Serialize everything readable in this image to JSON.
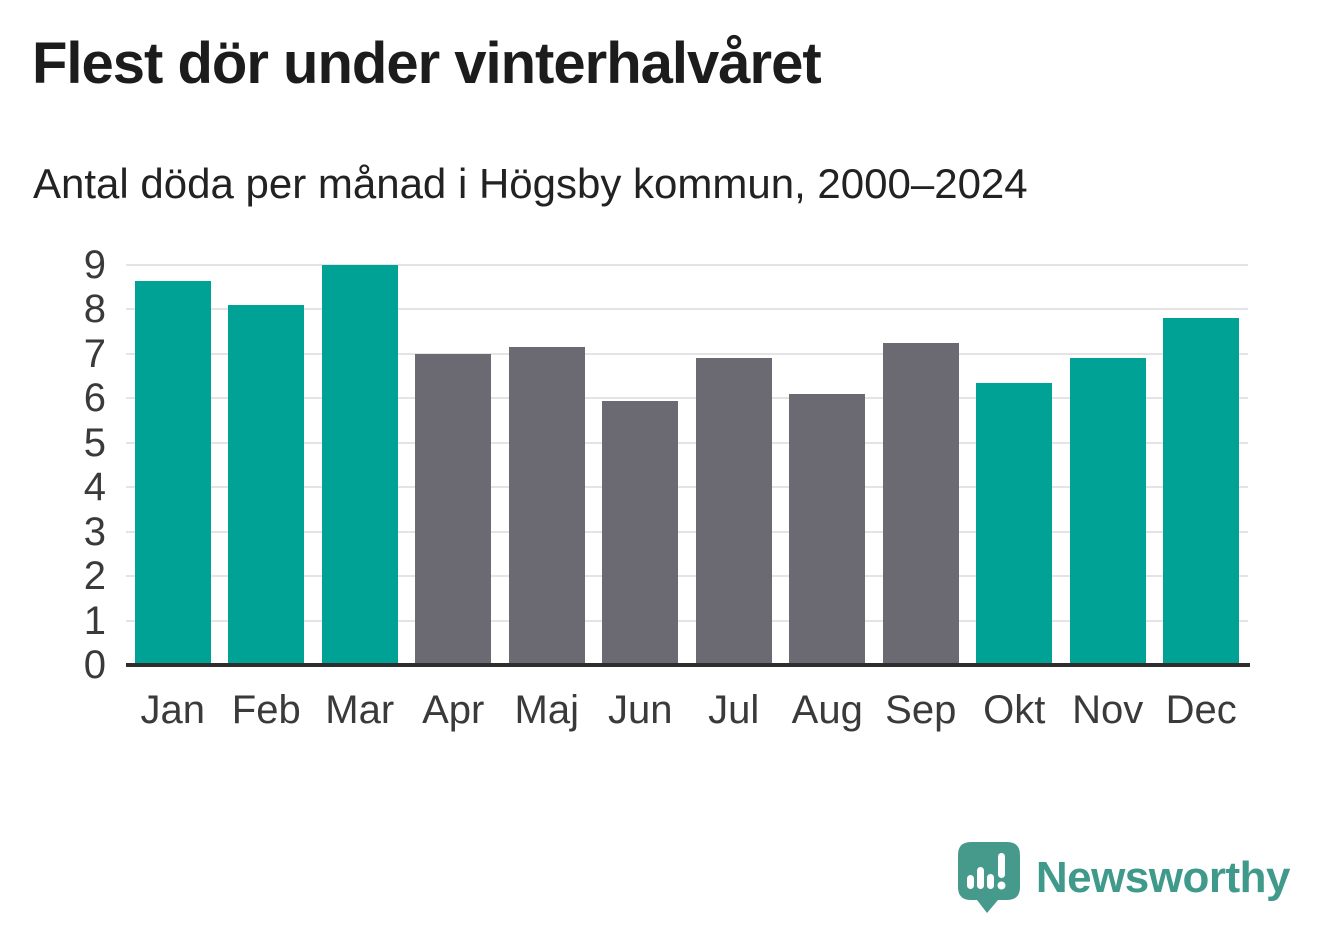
{
  "header": {
    "title": "Flest dör under vinterhalvåret",
    "subtitle": "Antal döda per månad i Högsby kommun, 2000–2024"
  },
  "chart_data": {
    "type": "bar",
    "title": "Flest dör under vinterhalvåret",
    "subtitle": "Antal döda per månad i Högsby kommun, 2000–2024",
    "categories": [
      "Jan",
      "Feb",
      "Mar",
      "Apr",
      "Maj",
      "Jun",
      "Jul",
      "Aug",
      "Sep",
      "Okt",
      "Nov",
      "Dec"
    ],
    "values": [
      8.65,
      8.1,
      9.0,
      7.0,
      7.15,
      5.95,
      6.9,
      6.1,
      7.25,
      6.35,
      6.9,
      7.8
    ],
    "bar_colors": [
      "#00a296",
      "#00a296",
      "#00a296",
      "#6b6a72",
      "#6b6a72",
      "#6b6a72",
      "#6b6a72",
      "#6b6a72",
      "#6b6a72",
      "#00a296",
      "#00a296",
      "#00a296"
    ],
    "highlighted_categories": [
      "Jan",
      "Feb",
      "Mar",
      "Okt",
      "Nov",
      "Dec"
    ],
    "xlabel": "",
    "ylabel": "",
    "ylim": [
      0,
      9
    ],
    "yticks": [
      0,
      1,
      2,
      3,
      4,
      5,
      6,
      7,
      8,
      9
    ],
    "grid": "horizontal-light",
    "legend": "none"
  },
  "colors": {
    "highlight_teal": "#00a296",
    "neutral_gray": "#6b6a72",
    "gridline": "#e4e4e4",
    "axis_line": "#2e2e2e",
    "axis_text": "#3a3a3a",
    "title_text": "#1c1c1c",
    "brand_teal": "#3f9a8c"
  },
  "branding": {
    "name": "Newsworthy",
    "icon": "newsworthy-speech-bubble-bar-chart-icon"
  }
}
